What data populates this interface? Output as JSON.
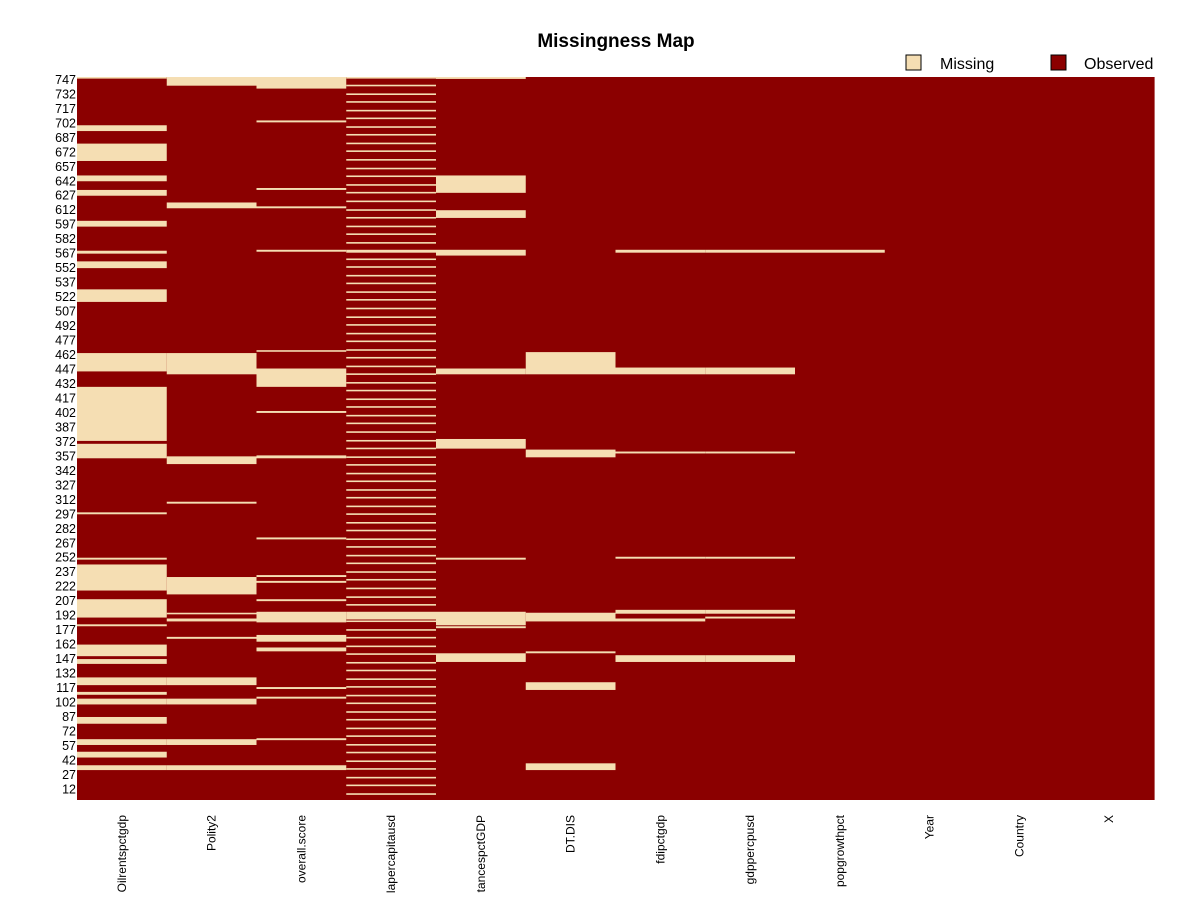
{
  "colors": {
    "missing": "#F5DEB3",
    "observed": "#8B0000"
  },
  "chart_data": {
    "type": "heatmap",
    "title": "Missingness Map",
    "legend": {
      "placement": "top-right",
      "entries": [
        "Missing",
        "Observed"
      ]
    },
    "ylim": [
      1,
      749
    ],
    "y_ticks": [
      "747",
      "732",
      "717",
      "702",
      "687",
      "672",
      "657",
      "642",
      "627",
      "612",
      "597",
      "582",
      "567",
      "552",
      "537",
      "522",
      "507",
      "492",
      "477",
      "462",
      "447",
      "432",
      "417",
      "402",
      "387",
      "372",
      "357",
      "342",
      "327",
      "312",
      "297",
      "282",
      "267",
      "252",
      "237",
      "222",
      "207",
      "192",
      "177",
      "162",
      "147",
      "132",
      "117",
      "102",
      "87",
      "72",
      "57",
      "42",
      "27",
      "12"
    ],
    "columns": [
      "Oilrentspctgdp",
      "Polity2",
      "overall.score",
      "lapercapitausd",
      "tancespctGDP",
      "DT.DIS",
      "fdipctgdp",
      "gdppercpusd",
      "popgrowthpct",
      "Year",
      "Country",
      "X"
    ],
    "missing_ranges": [
      [
        [
          749,
          749
        ],
        [
          699,
          694
        ],
        [
          680,
          663
        ],
        [
          647,
          642
        ],
        [
          632,
          627
        ],
        [
          600,
          595
        ],
        [
          569,
          567
        ],
        [
          558,
          552
        ],
        [
          529,
          517
        ],
        [
          463,
          445
        ],
        [
          428,
          373
        ],
        [
          369,
          355
        ],
        [
          298,
          297
        ],
        [
          251,
          250
        ],
        [
          244,
          218
        ],
        [
          208,
          190
        ],
        [
          182,
          181
        ],
        [
          161,
          150
        ],
        [
          146,
          142
        ],
        [
          127,
          120
        ],
        [
          112,
          110
        ],
        [
          105,
          100
        ],
        [
          86,
          80
        ],
        [
          63,
          58
        ],
        [
          50,
          45
        ],
        [
          36,
          32
        ]
      ],
      [
        [
          749,
          741
        ],
        [
          619,
          614
        ],
        [
          463,
          442
        ],
        [
          356,
          349
        ],
        [
          309,
          308
        ],
        [
          231,
          214
        ],
        [
          194,
          194
        ],
        [
          188,
          186
        ],
        [
          169,
          168
        ],
        [
          127,
          120
        ],
        [
          105,
          100
        ],
        [
          63,
          58
        ],
        [
          36,
          32
        ]
      ],
      [
        [
          749,
          738
        ],
        [
          704,
          703
        ],
        [
          634,
          633
        ],
        [
          615,
          614
        ],
        [
          570,
          569
        ],
        [
          466,
          466
        ],
        [
          447,
          429
        ],
        [
          403,
          402
        ],
        [
          357,
          355
        ],
        [
          272,
          271
        ],
        [
          233,
          232
        ],
        [
          227,
          226
        ],
        [
          208,
          207
        ],
        [
          195,
          185
        ],
        [
          171,
          165
        ],
        [
          158,
          155
        ],
        [
          117,
          116
        ],
        [
          107,
          106
        ],
        [
          64,
          63
        ],
        [
          36,
          32
        ]
      ],
      [
        [
          749,
          749
        ],
        [
          741,
          741
        ],
        [
          732,
          732
        ],
        [
          724,
          724
        ],
        [
          715,
          715
        ],
        [
          707,
          707
        ],
        [
          698,
          698
        ],
        [
          690,
          690
        ],
        [
          681,
          681
        ],
        [
          673,
          673
        ],
        [
          664,
          664
        ],
        [
          655,
          655
        ],
        [
          647,
          647
        ],
        [
          638,
          638
        ],
        [
          630,
          630
        ],
        [
          621,
          621
        ],
        [
          612,
          612
        ],
        [
          604,
          604
        ],
        [
          595,
          595
        ],
        [
          587,
          587
        ],
        [
          578,
          578
        ],
        [
          570,
          568
        ],
        [
          561,
          561
        ],
        [
          553,
          553
        ],
        [
          544,
          544
        ],
        [
          536,
          536
        ],
        [
          527,
          527
        ],
        [
          519,
          519
        ],
        [
          510,
          510
        ],
        [
          501,
          501
        ],
        [
          493,
          493
        ],
        [
          484,
          484
        ],
        [
          476,
          476
        ],
        [
          467,
          467
        ],
        [
          459,
          459
        ],
        [
          450,
          450
        ],
        [
          442,
          442
        ],
        [
          433,
          433
        ],
        [
          425,
          425
        ],
        [
          416,
          416
        ],
        [
          408,
          408
        ],
        [
          399,
          399
        ],
        [
          391,
          391
        ],
        [
          382,
          382
        ],
        [
          373,
          373
        ],
        [
          365,
          365
        ],
        [
          356,
          356
        ],
        [
          348,
          348
        ],
        [
          339,
          339
        ],
        [
          331,
          331
        ],
        [
          322,
          322
        ],
        [
          314,
          314
        ],
        [
          305,
          305
        ],
        [
          297,
          297
        ],
        [
          288,
          288
        ],
        [
          280,
          280
        ],
        [
          271,
          271
        ],
        [
          263,
          263
        ],
        [
          254,
          254
        ],
        [
          246,
          246
        ],
        [
          237,
          237
        ],
        [
          229,
          229
        ],
        [
          220,
          220
        ],
        [
          211,
          211
        ],
        [
          203,
          203
        ],
        [
          195,
          188
        ],
        [
          186,
          186
        ],
        [
          177,
          177
        ],
        [
          169,
          169
        ],
        [
          160,
          160
        ],
        [
          152,
          152
        ],
        [
          143,
          143
        ],
        [
          135,
          135
        ],
        [
          126,
          126
        ],
        [
          118,
          118
        ],
        [
          109,
          109
        ],
        [
          101,
          101
        ],
        [
          92,
          92
        ],
        [
          84,
          84
        ],
        [
          75,
          75
        ],
        [
          67,
          67
        ],
        [
          58,
          58
        ],
        [
          50,
          50
        ],
        [
          41,
          41
        ],
        [
          33,
          33
        ],
        [
          24,
          24
        ],
        [
          16,
          16
        ],
        [
          7,
          7
        ]
      ],
      [
        [
          749,
          748
        ],
        [
          647,
          630
        ],
        [
          611,
          604
        ],
        [
          570,
          565
        ],
        [
          447,
          442
        ],
        [
          374,
          365
        ],
        [
          251,
          250
        ],
        [
          195,
          182
        ],
        [
          180,
          179
        ],
        [
          152,
          144
        ]
      ],
      [
        [
          464,
          442
        ],
        [
          363,
          356
        ],
        [
          194,
          186
        ],
        [
          154,
          153
        ],
        [
          122,
          115
        ],
        [
          38,
          32
        ]
      ],
      [
        [
          570,
          568
        ],
        [
          448,
          442
        ],
        [
          361,
          360
        ],
        [
          252,
          251
        ],
        [
          197,
          194
        ],
        [
          188,
          186
        ],
        [
          150,
          144
        ]
      ],
      [
        [
          570,
          568
        ],
        [
          448,
          442
        ],
        [
          361,
          360
        ],
        [
          252,
          251
        ],
        [
          197,
          194
        ],
        [
          190,
          189
        ],
        [
          150,
          144
        ]
      ],
      [
        [
          570,
          568
        ]
      ],
      [],
      [],
      []
    ]
  }
}
